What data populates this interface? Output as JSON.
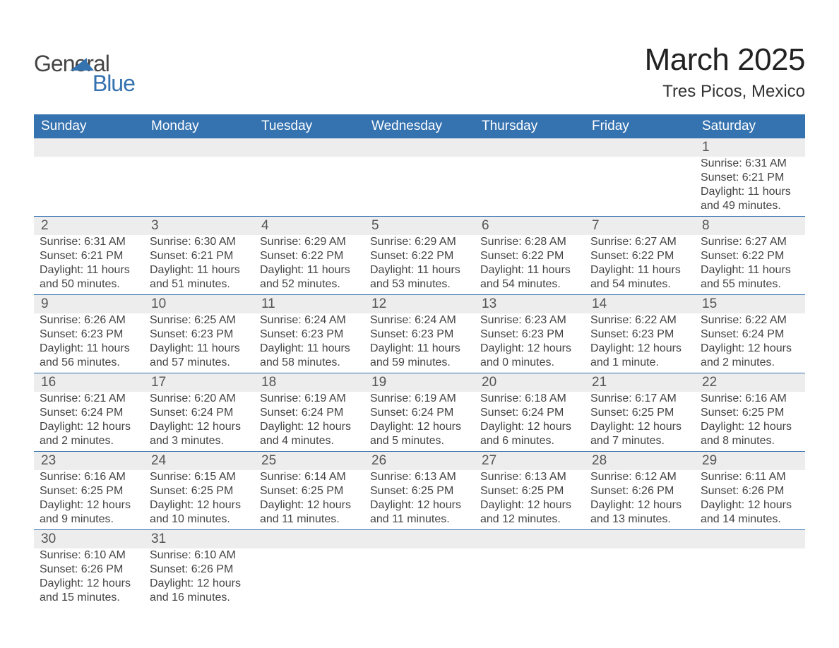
{
  "brand": {
    "text1": "General",
    "text2": "Blue",
    "color": "#3572b0"
  },
  "header": {
    "month_title": "March 2025",
    "location": "Tres Picos, Mexico"
  },
  "colors": {
    "header_bg": "#3572b0",
    "header_text": "#ffffff",
    "row_divider": "#3572b0",
    "daynum_bg": "#ededed",
    "body_text": "#444444",
    "page_bg": "#ffffff"
  },
  "typography": {
    "month_title_fontsize": 44,
    "location_fontsize": 24,
    "dayhead_fontsize": 19,
    "daynum_fontsize": 19,
    "cell_fontsize": 16,
    "logo_fontsize": 32
  },
  "calendar": {
    "type": "table",
    "day_headers": [
      "Sunday",
      "Monday",
      "Tuesday",
      "Wednesday",
      "Thursday",
      "Friday",
      "Saturday"
    ],
    "weeks": [
      [
        null,
        null,
        null,
        null,
        null,
        null,
        {
          "n": "1",
          "sunrise": "Sunrise: 6:31 AM",
          "sunset": "Sunset: 6:21 PM",
          "daylight": "Daylight: 11 hours and 49 minutes."
        }
      ],
      [
        {
          "n": "2",
          "sunrise": "Sunrise: 6:31 AM",
          "sunset": "Sunset: 6:21 PM",
          "daylight": "Daylight: 11 hours and 50 minutes."
        },
        {
          "n": "3",
          "sunrise": "Sunrise: 6:30 AM",
          "sunset": "Sunset: 6:21 PM",
          "daylight": "Daylight: 11 hours and 51 minutes."
        },
        {
          "n": "4",
          "sunrise": "Sunrise: 6:29 AM",
          "sunset": "Sunset: 6:22 PM",
          "daylight": "Daylight: 11 hours and 52 minutes."
        },
        {
          "n": "5",
          "sunrise": "Sunrise: 6:29 AM",
          "sunset": "Sunset: 6:22 PM",
          "daylight": "Daylight: 11 hours and 53 minutes."
        },
        {
          "n": "6",
          "sunrise": "Sunrise: 6:28 AM",
          "sunset": "Sunset: 6:22 PM",
          "daylight": "Daylight: 11 hours and 54 minutes."
        },
        {
          "n": "7",
          "sunrise": "Sunrise: 6:27 AM",
          "sunset": "Sunset: 6:22 PM",
          "daylight": "Daylight: 11 hours and 54 minutes."
        },
        {
          "n": "8",
          "sunrise": "Sunrise: 6:27 AM",
          "sunset": "Sunset: 6:22 PM",
          "daylight": "Daylight: 11 hours and 55 minutes."
        }
      ],
      [
        {
          "n": "9",
          "sunrise": "Sunrise: 6:26 AM",
          "sunset": "Sunset: 6:23 PM",
          "daylight": "Daylight: 11 hours and 56 minutes."
        },
        {
          "n": "10",
          "sunrise": "Sunrise: 6:25 AM",
          "sunset": "Sunset: 6:23 PM",
          "daylight": "Daylight: 11 hours and 57 minutes."
        },
        {
          "n": "11",
          "sunrise": "Sunrise: 6:24 AM",
          "sunset": "Sunset: 6:23 PM",
          "daylight": "Daylight: 11 hours and 58 minutes."
        },
        {
          "n": "12",
          "sunrise": "Sunrise: 6:24 AM",
          "sunset": "Sunset: 6:23 PM",
          "daylight": "Daylight: 11 hours and 59 minutes."
        },
        {
          "n": "13",
          "sunrise": "Sunrise: 6:23 AM",
          "sunset": "Sunset: 6:23 PM",
          "daylight": "Daylight: 12 hours and 0 minutes."
        },
        {
          "n": "14",
          "sunrise": "Sunrise: 6:22 AM",
          "sunset": "Sunset: 6:23 PM",
          "daylight": "Daylight: 12 hours and 1 minute."
        },
        {
          "n": "15",
          "sunrise": "Sunrise: 6:22 AM",
          "sunset": "Sunset: 6:24 PM",
          "daylight": "Daylight: 12 hours and 2 minutes."
        }
      ],
      [
        {
          "n": "16",
          "sunrise": "Sunrise: 6:21 AM",
          "sunset": "Sunset: 6:24 PM",
          "daylight": "Daylight: 12 hours and 2 minutes."
        },
        {
          "n": "17",
          "sunrise": "Sunrise: 6:20 AM",
          "sunset": "Sunset: 6:24 PM",
          "daylight": "Daylight: 12 hours and 3 minutes."
        },
        {
          "n": "18",
          "sunrise": "Sunrise: 6:19 AM",
          "sunset": "Sunset: 6:24 PM",
          "daylight": "Daylight: 12 hours and 4 minutes."
        },
        {
          "n": "19",
          "sunrise": "Sunrise: 6:19 AM",
          "sunset": "Sunset: 6:24 PM",
          "daylight": "Daylight: 12 hours and 5 minutes."
        },
        {
          "n": "20",
          "sunrise": "Sunrise: 6:18 AM",
          "sunset": "Sunset: 6:24 PM",
          "daylight": "Daylight: 12 hours and 6 minutes."
        },
        {
          "n": "21",
          "sunrise": "Sunrise: 6:17 AM",
          "sunset": "Sunset: 6:25 PM",
          "daylight": "Daylight: 12 hours and 7 minutes."
        },
        {
          "n": "22",
          "sunrise": "Sunrise: 6:16 AM",
          "sunset": "Sunset: 6:25 PM",
          "daylight": "Daylight: 12 hours and 8 minutes."
        }
      ],
      [
        {
          "n": "23",
          "sunrise": "Sunrise: 6:16 AM",
          "sunset": "Sunset: 6:25 PM",
          "daylight": "Daylight: 12 hours and 9 minutes."
        },
        {
          "n": "24",
          "sunrise": "Sunrise: 6:15 AM",
          "sunset": "Sunset: 6:25 PM",
          "daylight": "Daylight: 12 hours and 10 minutes."
        },
        {
          "n": "25",
          "sunrise": "Sunrise: 6:14 AM",
          "sunset": "Sunset: 6:25 PM",
          "daylight": "Daylight: 12 hours and 11 minutes."
        },
        {
          "n": "26",
          "sunrise": "Sunrise: 6:13 AM",
          "sunset": "Sunset: 6:25 PM",
          "daylight": "Daylight: 12 hours and 11 minutes."
        },
        {
          "n": "27",
          "sunrise": "Sunrise: 6:13 AM",
          "sunset": "Sunset: 6:25 PM",
          "daylight": "Daylight: 12 hours and 12 minutes."
        },
        {
          "n": "28",
          "sunrise": "Sunrise: 6:12 AM",
          "sunset": "Sunset: 6:26 PM",
          "daylight": "Daylight: 12 hours and 13 minutes."
        },
        {
          "n": "29",
          "sunrise": "Sunrise: 6:11 AM",
          "sunset": "Sunset: 6:26 PM",
          "daylight": "Daylight: 12 hours and 14 minutes."
        }
      ],
      [
        {
          "n": "30",
          "sunrise": "Sunrise: 6:10 AM",
          "sunset": "Sunset: 6:26 PM",
          "daylight": "Daylight: 12 hours and 15 minutes."
        },
        {
          "n": "31",
          "sunrise": "Sunrise: 6:10 AM",
          "sunset": "Sunset: 6:26 PM",
          "daylight": "Daylight: 12 hours and 16 minutes."
        },
        null,
        null,
        null,
        null,
        null
      ]
    ]
  }
}
